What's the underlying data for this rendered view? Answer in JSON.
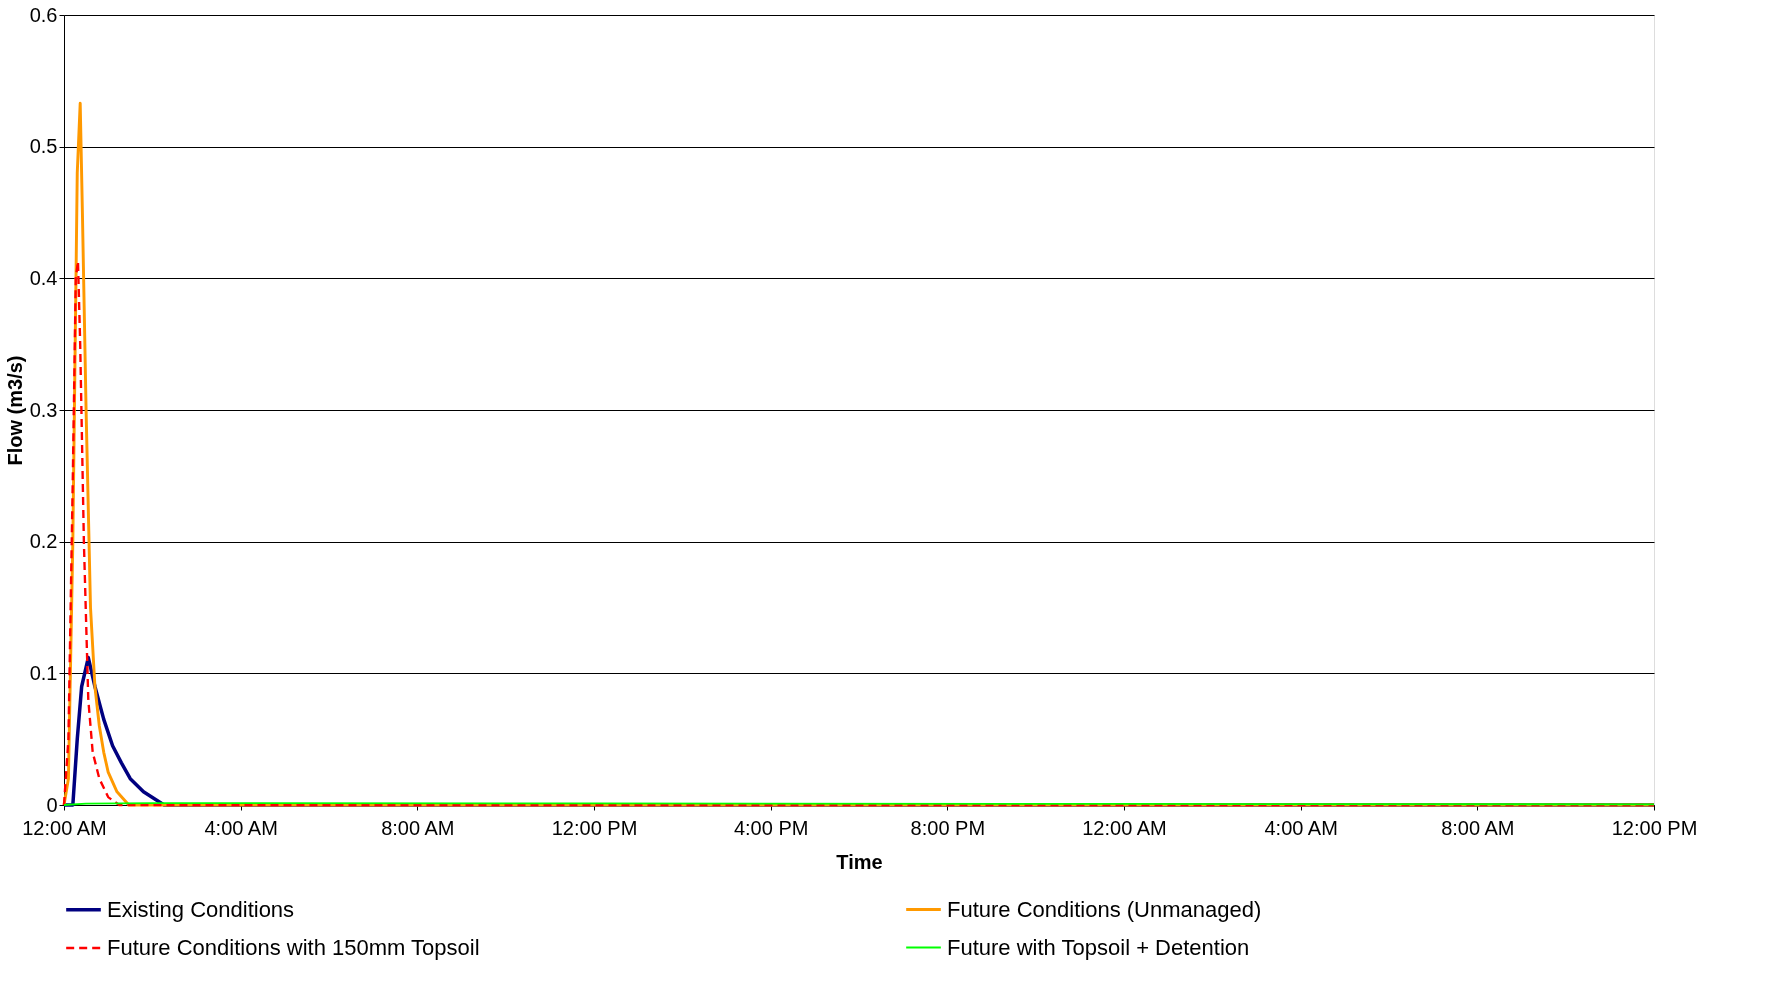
{
  "chart_data": {
    "type": "line",
    "xlabel": "Time",
    "ylabel": "Flow (m3/s)",
    "xlim": [
      "2000-01-01T00:00",
      "2000-01-02T12:00"
    ],
    "xticks": [
      {
        "value": "2000-01-01T00:00",
        "label": "12:00 AM"
      },
      {
        "value": "2000-01-01T04:00",
        "label": "4:00 AM"
      },
      {
        "value": "2000-01-01T08:00",
        "label": "8:00 AM"
      },
      {
        "value": "2000-01-01T12:00",
        "label": "12:00 PM"
      },
      {
        "value": "2000-01-01T16:00",
        "label": "4:00 PM"
      },
      {
        "value": "2000-01-01T20:00",
        "label": "8:00 PM"
      },
      {
        "value": "2000-01-02T00:00",
        "label": "12:00 AM"
      },
      {
        "value": "2000-01-02T04:00",
        "label": "4:00 AM"
      },
      {
        "value": "2000-01-02T08:00",
        "label": "8:00 AM"
      },
      {
        "value": "2000-01-02T12:00",
        "label": "12:00 PM"
      }
    ],
    "ylim": [
      0,
      0.6
    ],
    "yticks": [
      0,
      0.1,
      0.2,
      0.3,
      0.4,
      0.5,
      0.6
    ],
    "grid": "y",
    "legend": "bottom",
    "marker": "none",
    "series": [
      {
        "name": "Existing Conditions",
        "color": "#000080",
        "line_style": "solid",
        "x": [
          "2000-01-01T00:00",
          "2000-01-01T00:12",
          "2000-01-01T00:18",
          "2000-01-01T00:24",
          "2000-01-01T00:33",
          "2000-01-01T00:42",
          "2000-01-01T00:54",
          "2000-01-01T01:06",
          "2000-01-01T01:18",
          "2000-01-01T01:30",
          "2000-01-01T01:48",
          "2000-01-01T02:16",
          "2000-01-02T12:00"
        ],
        "values": [
          0,
          0,
          0.05,
          0.09,
          0.112,
          0.09,
          0.065,
          0.045,
          0.032,
          0.02,
          0.01,
          0,
          0
        ]
      },
      {
        "name": "Future Conditions (Unmanaged)",
        "color": "#ff9900",
        "line_style": "solid",
        "x": [
          "2000-01-01T00:00",
          "2000-01-01T00:06",
          "2000-01-01T00:12",
          "2000-01-01T00:18",
          "2000-01-01T00:22",
          "2000-01-01T00:25",
          "2000-01-01T00:30",
          "2000-01-01T00:36",
          "2000-01-01T00:42",
          "2000-01-01T00:48",
          "2000-01-01T00:54",
          "2000-01-01T01:00",
          "2000-01-01T01:12",
          "2000-01-01T01:28",
          "2000-01-02T12:00"
        ],
        "values": [
          0,
          0.02,
          0.2,
          0.48,
          0.533,
          0.45,
          0.3,
          0.15,
          0.09,
          0.06,
          0.04,
          0.025,
          0.01,
          0,
          0
        ]
      },
      {
        "name": "Future Conditions with 150mm Topsoil",
        "color": "#ff0000",
        "line_style": "dashed",
        "x": [
          "2000-01-01T00:00",
          "2000-01-01T00:06",
          "2000-01-01T00:12",
          "2000-01-01T00:16",
          "2000-01-01T00:19",
          "2000-01-01T00:22",
          "2000-01-01T00:27",
          "2000-01-01T00:33",
          "2000-01-01T00:39",
          "2000-01-01T00:48",
          "2000-01-01T01:00",
          "2000-01-01T01:15",
          "2000-01-02T12:00"
        ],
        "values": [
          0,
          0.05,
          0.25,
          0.4,
          0.413,
          0.35,
          0.2,
          0.08,
          0.04,
          0.02,
          0.006,
          0,
          0
        ]
      },
      {
        "name": "Future with Topsoil + Detention",
        "color": "#00ff00",
        "line_style": "solid",
        "x": [
          "2000-01-01T00:00",
          "2000-01-01T00:30",
          "2000-01-01T02:00",
          "2000-01-01T12:00",
          "2000-01-02T00:00",
          "2000-01-02T12:00"
        ],
        "values": [
          0,
          0.001,
          0.0015,
          0.0012,
          0.0008,
          0.0005
        ]
      }
    ]
  }
}
